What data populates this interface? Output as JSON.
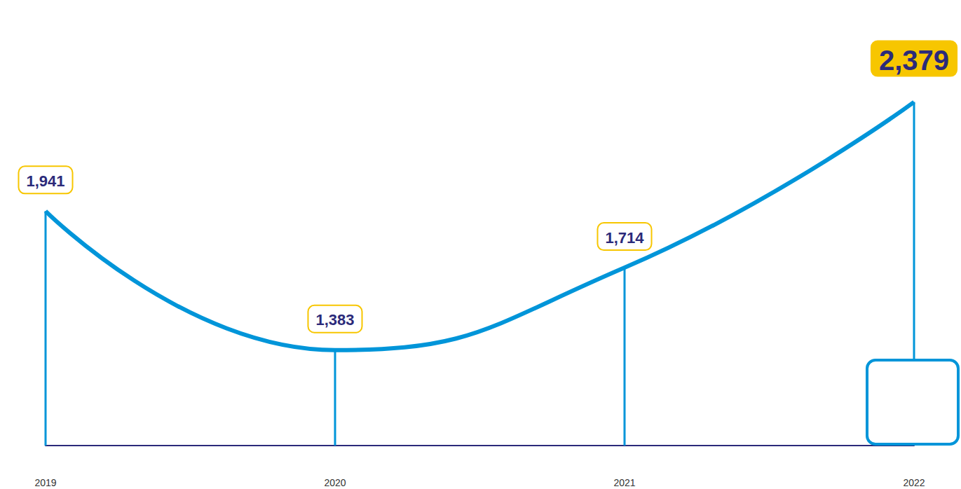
{
  "chart_data": {
    "type": "line",
    "categories": [
      "2019",
      "2020",
      "2021",
      "2022"
    ],
    "values": [
      1941,
      1383,
      1714,
      2379
    ],
    "value_labels": [
      "1,941",
      "1,383",
      "1,714",
      "2,379"
    ],
    "color": "#0095d9",
    "ylim": [
      1000,
      2600
    ],
    "data_labels": true,
    "tick_labels": "x",
    "grid": false
  }
}
